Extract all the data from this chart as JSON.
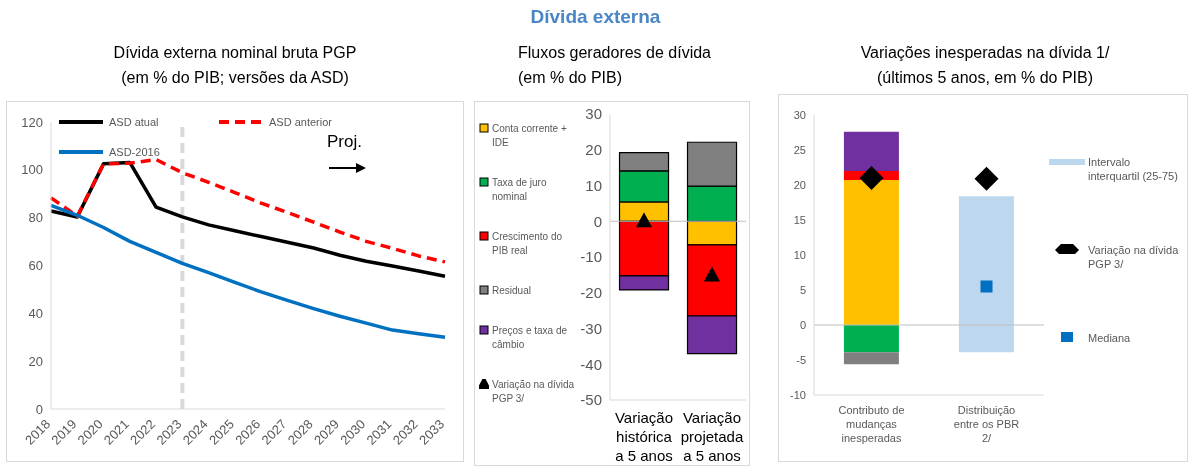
{
  "chart_data": [
    {
      "type": "line",
      "title": "Dívida externa nominal bruta PGP",
      "subtitle": "(em % do PIB; versões da ASD)",
      "annotations": [
        "Dívida externa",
        "Proj."
      ],
      "categories": [
        "2018",
        "2019",
        "2020",
        "2021",
        "2022",
        "2023",
        "2024",
        "2025",
        "2026",
        "2027",
        "2028",
        "2029",
        "2030",
        "2031",
        "2032",
        "2033"
      ],
      "series": [
        {
          "name": "ASD atual",
          "color": "#000000",
          "values": [
            82.8,
            80.3,
            102.5,
            103.1,
            84.4,
            80.3,
            77,
            74.5,
            72.1,
            69.7,
            67.3,
            64.3,
            61.8,
            59.8,
            57.7,
            55.5
          ]
        },
        {
          "name": "ASD anterior",
          "color": "#ff0000",
          "line_style": "dashed",
          "values": [
            88.3,
            80.6,
            102.5,
            102.8,
            104.3,
            98.8,
            94.8,
            90.5,
            86.1,
            82.2,
            78.1,
            74,
            70.1,
            67.2,
            64,
            61.5
          ]
        },
        {
          "name": "ASD-2016",
          "color": "#0070c0",
          "values": [
            85.1,
            81,
            75.9,
            70.1,
            65.5,
            60.9,
            57,
            52.9,
            49,
            45.4,
            42,
            38.8,
            35.9,
            33,
            31.5,
            30
          ]
        }
      ],
      "ylim": [
        0,
        120
      ],
      "yticks": [
        0,
        20,
        40,
        60,
        80,
        100,
        120
      ],
      "legend": "top left",
      "ref_lines": [
        {
          "axis": "x",
          "value": "2023",
          "color": "#d9d9d9",
          "line_style": "dashed"
        }
      ]
    },
    {
      "type": "bar",
      "title": "Fluxos geradores de dívida",
      "subtitle": "(em % do PIB)",
      "stacked": true,
      "categories": [
        "Variação histórica a 5 anos",
        "Variação projetada a 5 anos"
      ],
      "series": [
        {
          "name": "Conta corrente + IDE",
          "color": "#ffc000",
          "values": [
            5.4,
            -6.6
          ]
        },
        {
          "name": "Taxa de juro nominal",
          "color": "#00b050",
          "values": [
            8.7,
            9.8
          ]
        },
        {
          "name": "Crescimento do PIB real",
          "color": "#ff0000",
          "values": [
            -15.3,
            -19.9
          ]
        },
        {
          "name": "Residual",
          "color": "#808080",
          "values": [
            5.1,
            12.3
          ]
        },
        {
          "name": "Preços e taxa de câmbio",
          "color": "#7030a0",
          "values": [
            -3.9,
            -10.5
          ]
        },
        {
          "name": "Variação na dívida PGP 3/",
          "type": "scatter",
          "marker": "triangle",
          "color": "#000000",
          "values": [
            0,
            -15.2
          ]
        }
      ],
      "ylim": [
        -50,
        30
      ],
      "yticks": [
        -50,
        -40,
        -30,
        -20,
        -10,
        0,
        10,
        20,
        30
      ],
      "legend": "left",
      "ref_lines": [
        {
          "axis": "y",
          "value": 0,
          "color": "#bfbfbf"
        }
      ]
    },
    {
      "type": "bar",
      "title": "Variações inesperadas na dívida 1/",
      "subtitle": "(últimos 5 anos, em % do PIB)",
      "stacked": true,
      "categories": [
        "Contributo de mudanças inesperadas",
        "Distribuição entre os PBR 2/"
      ],
      "series": [
        {
          "color": "#ffc000",
          "values": [
            20.7,
            null
          ]
        },
        {
          "color": "#ff0000",
          "values": [
            1.3,
            null
          ]
        },
        {
          "color": "#7030a0",
          "values": [
            5.6,
            null
          ]
        },
        {
          "color": "#00b050",
          "values": [
            -3.9,
            null
          ]
        },
        {
          "color": "#808080",
          "values": [
            -1.7,
            null
          ]
        },
        {
          "name": "Intervalo interquartil (25-75)",
          "color": "#bdd7ee",
          "base": [
            null,
            -3.9
          ],
          "values": [
            null,
            22.3
          ]
        },
        {
          "name": "Variação na dívida PGP 3/",
          "type": "scatter",
          "marker": "diamond",
          "color": "#000000",
          "values": [
            21,
            20.9
          ]
        },
        {
          "name": "Mediana",
          "type": "scatter",
          "marker": "square",
          "color": "#0070c0",
          "values": [
            null,
            5.5
          ]
        }
      ],
      "ylim": [
        -10,
        30
      ],
      "yticks": [
        -10,
        -5,
        0,
        5,
        10,
        15,
        20,
        25,
        30
      ],
      "legend": "right",
      "ref_lines": [
        {
          "axis": "y",
          "value": 0,
          "color": "#bfbfbf"
        }
      ]
    }
  ]
}
